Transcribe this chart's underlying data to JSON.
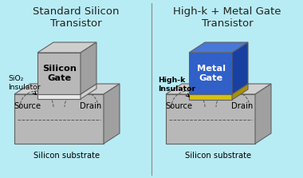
{
  "bg_color": "#b8ecf4",
  "title_left": "Standard Silicon\nTransistor",
  "title_right": "High-k + Metal Gate\nTransistor",
  "title_fontsize": 9.5,
  "label_fontsize": 7.2,
  "left": {
    "sub_face": "#b8b8b8",
    "sub_top": "#d0d0d0",
    "sub_side": "#a0a0a0",
    "gate_face": "#b8b8b8",
    "gate_top": "#cecece",
    "gate_side": "#a0a0a0",
    "ins_face": "#e8e8e8",
    "ins_top": "#f5f5f5",
    "ins_side": "#d0d0d0",
    "label_source": "Source",
    "label_drain": "Drain",
    "label_substrate": "Silicon substrate",
    "label_gate": "Silicon\nGate",
    "label_insulator": "SiO₂\nInsulator"
  },
  "right": {
    "sub_face": "#b8b8b8",
    "sub_top": "#d0d0d0",
    "sub_side": "#a0a0a0",
    "gate_face": "#3060c8",
    "gate_top": "#4878d8",
    "gate_side": "#1840a0",
    "hk_face": "#d8c010",
    "hk_top": "#c8c8a0",
    "hk_side": "#a89008",
    "label_source": "Source",
    "label_drain": "Drain",
    "label_substrate": "Silicon substrate",
    "label_gate": "Metal\nGate",
    "label_insulator": "High-k\nInsulator"
  },
  "divider_color": "#909090"
}
